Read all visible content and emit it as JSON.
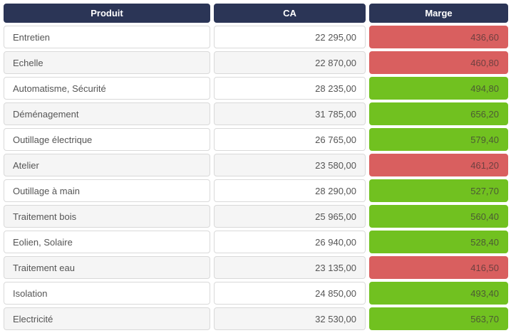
{
  "table": {
    "columns": [
      "Produit",
      "CA",
      "Marge"
    ],
    "rows": [
      {
        "produit": "Entretien",
        "ca": "22 295,00",
        "marge": "436,60",
        "status": "red"
      },
      {
        "produit": "Echelle",
        "ca": "22 870,00",
        "marge": "460,80",
        "status": "red"
      },
      {
        "produit": "Automatisme, Sécurité",
        "ca": "28 235,00",
        "marge": "494,80",
        "status": "green"
      },
      {
        "produit": "Déménagement",
        "ca": "31 785,00",
        "marge": "656,20",
        "status": "green"
      },
      {
        "produit": "Outillage électrique",
        "ca": "26 765,00",
        "marge": "579,40",
        "status": "green"
      },
      {
        "produit": "Atelier",
        "ca": "23 580,00",
        "marge": "461,20",
        "status": "red"
      },
      {
        "produit": "Outillage à main",
        "ca": "28 290,00",
        "marge": "527,70",
        "status": "green"
      },
      {
        "produit": "Traitement bois",
        "ca": "25 965,00",
        "marge": "560,40",
        "status": "green"
      },
      {
        "produit": "Eolien, Solaire",
        "ca": "26 940,00",
        "marge": "528,40",
        "status": "green"
      },
      {
        "produit": "Traitement eau",
        "ca": "23 135,00",
        "marge": "416,50",
        "status": "red"
      },
      {
        "produit": "Isolation",
        "ca": "24 850,00",
        "marge": "493,40",
        "status": "green"
      },
      {
        "produit": "Electricité",
        "ca": "32 530,00",
        "marge": "563,70",
        "status": "green"
      }
    ]
  },
  "colors": {
    "header_bg": "#2b3556",
    "header_text": "#ffffff",
    "row_bg": "#ffffff",
    "row_alt_bg": "#f5f5f5",
    "cell_border": "#d9d9d9",
    "marge_red": "#d95f5f",
    "marge_green": "#71c120",
    "text": "#555555"
  }
}
